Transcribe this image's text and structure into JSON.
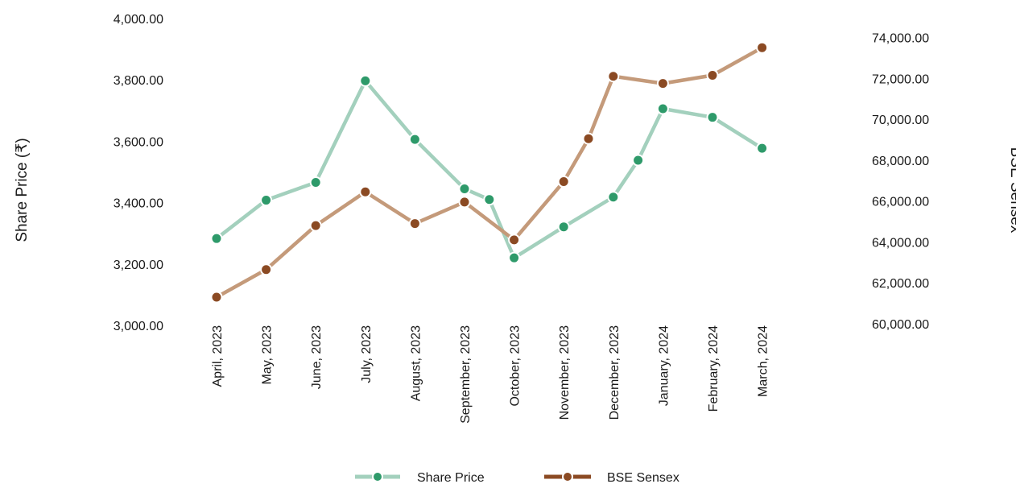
{
  "chart_data": {
    "type": "line",
    "title": "",
    "xlabel": "",
    "ylabel": "Share Price (₹)",
    "y2label": "BSE Sensex",
    "categories": [
      "April, 2023",
      "May, 2023",
      "June, 2023",
      "July, 2023",
      "August, 2023",
      "September, 2023",
      "October, 2023",
      "November, 2023",
      "December, 2023",
      "January, 2024",
      "February, 2024",
      "March, 2024"
    ],
    "ylim": [
      3000,
      4000
    ],
    "yticks": [
      "3,000.00",
      "3,200.00",
      "3,400.00",
      "3,600.00",
      "3,800.00",
      "4,000.00"
    ],
    "y2lim": [
      60000,
      74000
    ],
    "y2ticks": [
      "60,000.00",
      "62,000.00",
      "64,000.00",
      "66,000.00",
      "68,000.00",
      "70,000.00",
      "72,000.00",
      "74,000.00"
    ],
    "grid": false,
    "legend_position": "bottom",
    "series": [
      {
        "name": "Share Price",
        "axis": "left",
        "line_color": "#a3d0bd",
        "marker_color": "#2e9a6a",
        "x": [
          0,
          1,
          2,
          3,
          4,
          5,
          5.5,
          6,
          7,
          8,
          8.5,
          9,
          10,
          11
        ],
        "values": [
          3283,
          3408,
          3466,
          3797,
          3606,
          3445,
          3410,
          3220,
          3321,
          3418,
          3538,
          3706,
          3678,
          3577
        ]
      },
      {
        "name": "BSE Sensex",
        "axis": "right",
        "line_color": "#c49a7a",
        "marker_color": "#8b4a23",
        "x": [
          0,
          1,
          2,
          3,
          4,
          5,
          6,
          7,
          7.5,
          8,
          9,
          10,
          11
        ],
        "values": [
          61300,
          62650,
          64800,
          66450,
          64900,
          65950,
          64100,
          66950,
          69050,
          72100,
          71750,
          72150,
          73500
        ]
      }
    ]
  }
}
